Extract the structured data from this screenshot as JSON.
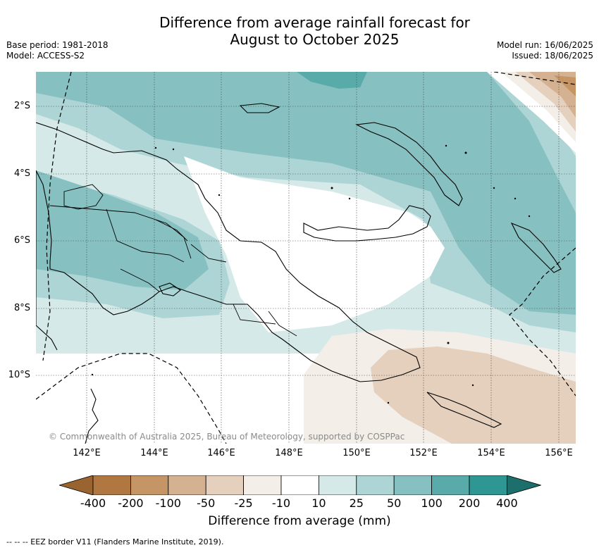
{
  "title_line1": "Difference from average rainfall forecast for",
  "title_line2": "August to October 2025",
  "base_period": "Base period: 1981-2018",
  "model": "Model: ACCESS-S2",
  "model_run": "Model run: 16/06/2025",
  "issued": "Issued: 18/06/2025",
  "copyright": "© Commonwealth of Australia 2025, Bureau of Meteorology, supported by COSPPac",
  "lat_labels": [
    "2°S",
    "4°S",
    "6°S",
    "8°S",
    "10°S"
  ],
  "lon_labels": [
    "142°E",
    "144°E",
    "146°E",
    "148°E",
    "150°E",
    "152°E",
    "154°E",
    "156°E"
  ],
  "colorbar": {
    "labels": [
      "-400",
      "-200",
      "-100",
      "-50",
      "-25",
      "-10",
      "10",
      "25",
      "50",
      "100",
      "200",
      "400"
    ],
    "colors": [
      "#9a6431",
      "#b07840",
      "#c59565",
      "#d4b190",
      "#e5d0bd",
      "#f3eee8",
      "#ffffff",
      "#d5e9e8",
      "#aed5d5",
      "#86c0c0",
      "#59abaa",
      "#2e9793",
      "#1c6f6b"
    ],
    "title": "Difference from average (mm)"
  },
  "footnote": "--  --  -- EEZ border V11 (Flanders Marine Institute, 2019)."
}
